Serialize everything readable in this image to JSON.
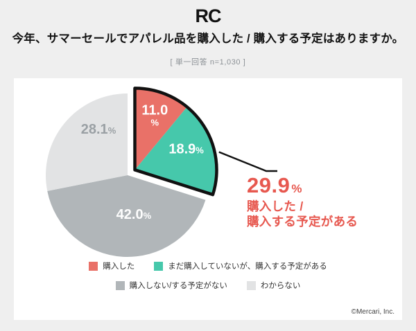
{
  "header": {
    "logo": "RC",
    "title": "今年、サマーセールでアパレル品を購入した / 購入する予定はありますか。",
    "subtitle": "[ 単一回答 n=1,030 ]"
  },
  "chart_data": {
    "type": "pie",
    "title": "今年、サマーセールでアパレル品を購入した / 購入する予定はありますか。",
    "sample_note": "単一回答 n=1,030",
    "start_angle": "12-oclock",
    "direction": "clockwise",
    "legend_position": "bottom",
    "outline_color": "#111111",
    "legend_rows": [
      [
        0,
        1
      ],
      [
        2,
        3
      ]
    ],
    "slices": [
      {
        "label": "購入した",
        "value": 11.0,
        "display": "11.0%",
        "color": "#e97168",
        "text_color": "#ffffff",
        "exploded": true,
        "stacked_label": true
      },
      {
        "label": "まだ購入していないが、購入する予定がある",
        "value": 18.9,
        "display": "18.9%",
        "color": "#46c8ab",
        "text_color": "#ffffff",
        "exploded": true
      },
      {
        "label": "購入しない/する予定がない",
        "value": 42.0,
        "display": "42.0%",
        "color": "#b1b6b9",
        "text_color": "#fdfdfd"
      },
      {
        "label": "わからない",
        "value": 28.1,
        "display": "28.1%",
        "color": "#e2e3e4",
        "text_color": "#9aa0a4"
      }
    ],
    "callout": {
      "value": "29.9",
      "unit": "%",
      "line1": "購入した /",
      "line2": "購入する予定がある",
      "color": "#e7584f"
    }
  },
  "footer": {
    "copyright": "©Mercari, Inc."
  }
}
